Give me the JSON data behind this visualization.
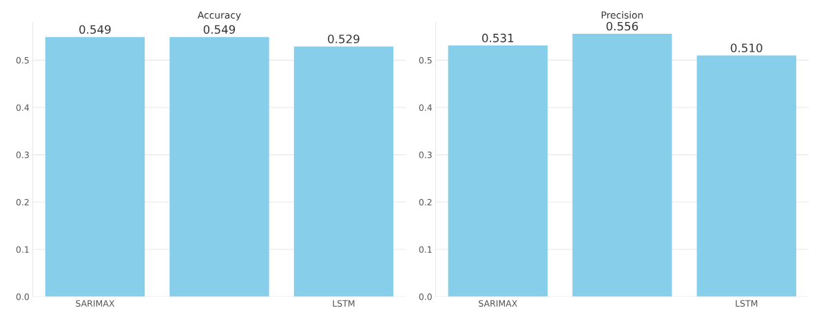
{
  "chart_data": [
    {
      "type": "bar",
      "title": "Accuracy",
      "categories": [
        "SARIMAX",
        null,
        "LSTM"
      ],
      "values": [
        0.549,
        0.549,
        0.529
      ],
      "color": "#87ceeb",
      "value_labels": [
        "0.549",
        "0.549",
        "0.529"
      ],
      "ylim": [
        0,
        0.58
      ],
      "yticks": [
        {
          "value": 0,
          "label": "0.0"
        },
        {
          "value": 0.1,
          "label": "0.1"
        },
        {
          "value": 0.2,
          "label": "0.2"
        },
        {
          "value": 0.3,
          "label": "0.3"
        },
        {
          "value": 0.4,
          "label": "0.4"
        },
        {
          "value": 0.5,
          "label": "0.5"
        }
      ],
      "grid": "y"
    },
    {
      "type": "bar",
      "title": "Precision",
      "categories": [
        "SARIMAX",
        null,
        "LSTM"
      ],
      "values": [
        0.531,
        0.556,
        0.51
      ],
      "color": "#87ceeb",
      "value_labels": [
        "0.531",
        "0.556",
        "0.510"
      ],
      "ylim": [
        0,
        0.58
      ],
      "yticks": [
        {
          "value": 0,
          "label": "0.0"
        },
        {
          "value": 0.1,
          "label": "0.1"
        },
        {
          "value": 0.2,
          "label": "0.2"
        },
        {
          "value": 0.3,
          "label": "0.3"
        },
        {
          "value": 0.4,
          "label": "0.4"
        },
        {
          "value": 0.5,
          "label": "0.5"
        }
      ],
      "grid": "y"
    }
  ]
}
